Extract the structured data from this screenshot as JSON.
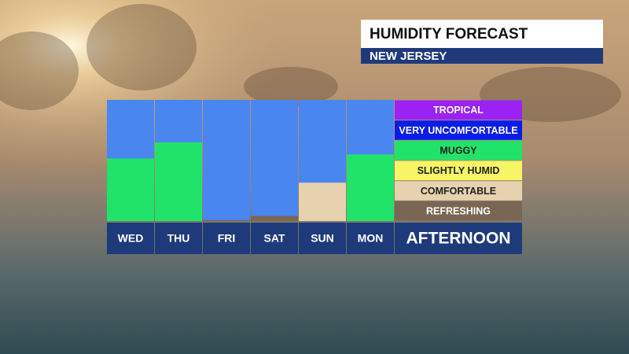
{
  "chart_data": {
    "type": "bar",
    "title": "HUMIDITY FORECAST",
    "subtitle": "NEW JERSEY",
    "x_label": "AFTERNOON",
    "categories": [
      "WED",
      "THU",
      "FRI",
      "SAT",
      "SUN",
      "MON"
    ],
    "values": [
      3.1,
      3.9,
      0.05,
      0.25,
      1.9,
      3.3
    ],
    "ylim": [
      0,
      6
    ],
    "background_color": "#4a86f0",
    "levels": [
      {
        "label": "REFRESHING",
        "color": "#7a6652"
      },
      {
        "label": "COMFORTABLE",
        "color": "#e6d2ae"
      },
      {
        "label": "SLIGHTLY HUMID",
        "color": "#f7f565"
      },
      {
        "label": "MUGGY",
        "color": "#22e36a"
      },
      {
        "label": "VERY UNCOMFORTABLE",
        "color": "#0a1de8"
      },
      {
        "label": "TROPICAL",
        "color": "#9b22f2"
      }
    ]
  }
}
